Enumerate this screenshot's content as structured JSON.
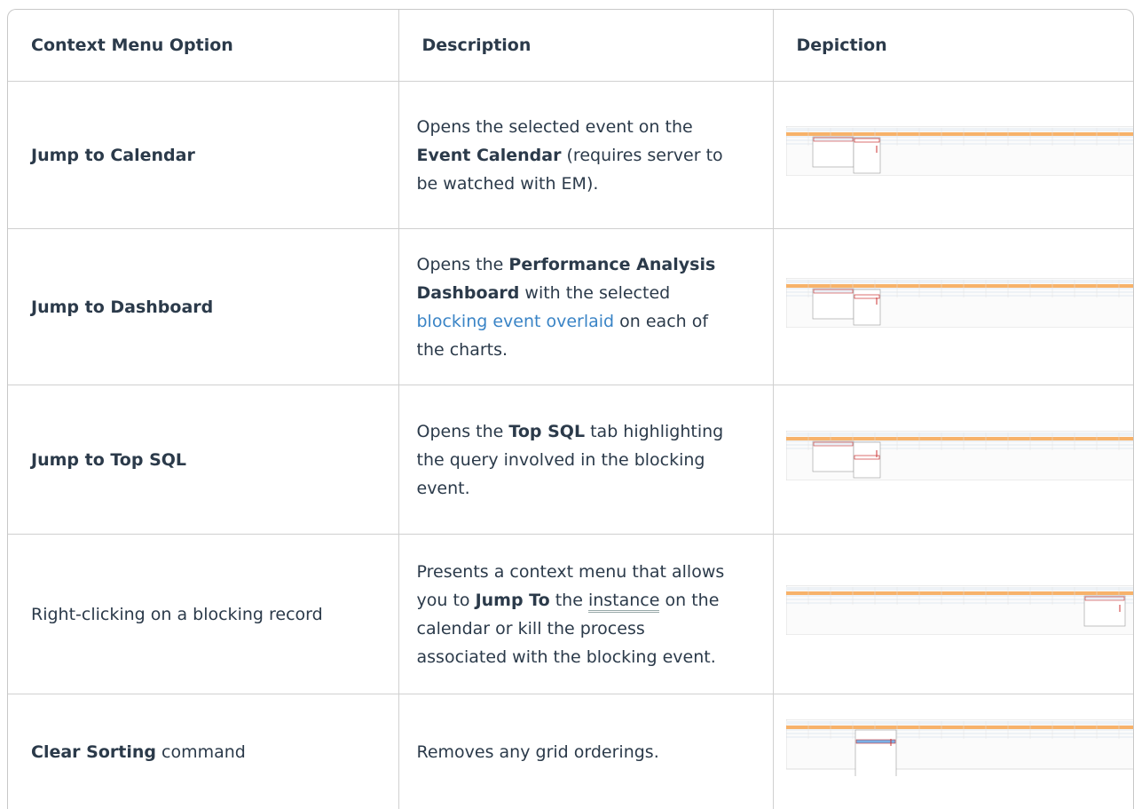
{
  "table": {
    "headers": [
      "Context Menu Option",
      "Description",
      "Depiction"
    ],
    "rows": [
      {
        "option": [
          {
            "text": "Jump to Calendar",
            "style": "bold"
          }
        ],
        "description": [
          {
            "text": "Opens the selected event on the "
          },
          {
            "text": "Event Calendar",
            "style": "bold"
          },
          {
            "text": " (requires server to be watched with EM)."
          }
        ]
      },
      {
        "option": [
          {
            "text": "Jump to Dashboard",
            "style": "bold"
          }
        ],
        "description": [
          {
            "text": "Opens the "
          },
          {
            "text": "Performance Analysis Dashboard",
            "style": "bold"
          },
          {
            "text": " with the selected "
          },
          {
            "text": "blocking event overlaid",
            "style": "link"
          },
          {
            "text": " on each of the charts."
          }
        ]
      },
      {
        "option": [
          {
            "text": "Jump to Top SQL",
            "style": "bold"
          }
        ],
        "description": [
          {
            "text": "Opens the "
          },
          {
            "text": "Top SQL",
            "style": "bold"
          },
          {
            "text": " tab highlighting the query involved in the blocking event."
          }
        ]
      },
      {
        "option": [
          {
            "text": "Right-clicking on a blocking record"
          }
        ],
        "description": [
          {
            "text": "Presents a context menu that allows you to "
          },
          {
            "text": "Jump To",
            "style": "bold"
          },
          {
            "text": " the "
          },
          {
            "text": "instance",
            "style": "term"
          },
          {
            "text": " on the calendar or kill the process associated with the blocking event."
          }
        ]
      },
      {
        "option": [
          {
            "text": "Clear Sorting",
            "style": "bold"
          },
          {
            "text": " command"
          }
        ],
        "description": [
          {
            "text": "Removes any grid orderings."
          }
        ]
      }
    ]
  }
}
